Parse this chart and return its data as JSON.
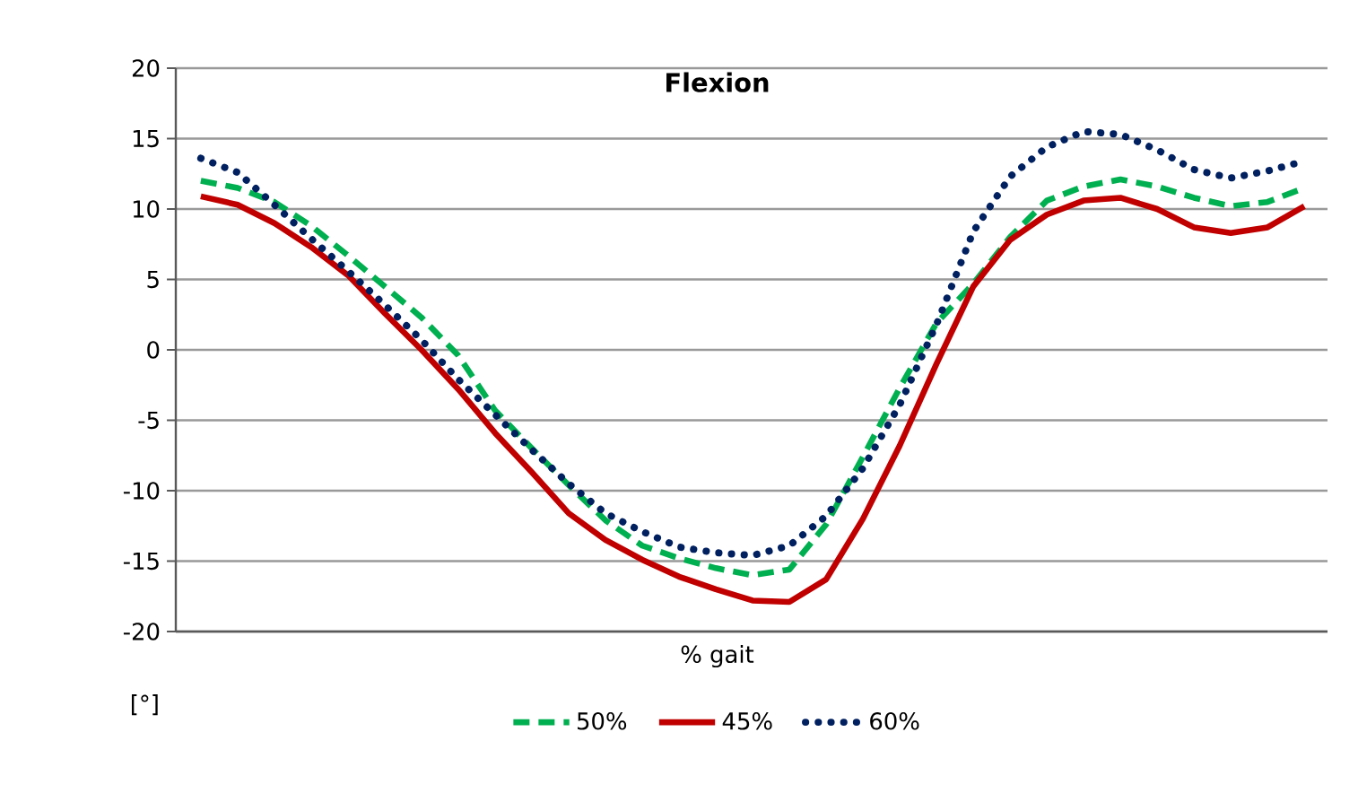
{
  "chart_data": {
    "type": "line",
    "title": "Flexion",
    "xlabel": "% gait",
    "ylabel": "[°]",
    "categories": [
      null,
      null,
      null,
      null,
      null,
      null,
      null,
      null,
      null,
      null,
      null,
      null,
      null,
      null,
      null,
      null,
      null,
      null,
      null,
      null,
      null,
      null,
      null,
      null,
      null,
      null,
      null,
      null,
      null,
      null,
      null
    ],
    "ylim": [
      -20,
      20
    ],
    "yticks": [
      -20,
      -15,
      -10,
      -5,
      0,
      5,
      10,
      15,
      20
    ],
    "grid": "y",
    "legend": "bottom",
    "tick_labels": "y",
    "marker": "none",
    "series": [
      {
        "name": "50%",
        "color": "#00b050",
        "line_style": "dashed",
        "values": [
          12.0,
          11.5,
          10.5,
          8.8,
          6.7,
          4.5,
          2.3,
          -0.4,
          -4.3,
          -7.0,
          -9.6,
          -12.1,
          -13.9,
          -14.8,
          -15.5,
          -16.0,
          -15.6,
          -12.4,
          -7.6,
          -2.7,
          1.9,
          4.7,
          8.0,
          10.6,
          11.6,
          12.1,
          11.6,
          10.8,
          10.2,
          10.5,
          11.5
        ]
      },
      {
        "name": "45%",
        "color": "#c00000",
        "line_style": "solid",
        "values": [
          10.9,
          10.3,
          9.0,
          7.3,
          5.3,
          2.6,
          0.0,
          -2.8,
          -5.9,
          -8.7,
          -11.6,
          -13.5,
          -14.9,
          -16.1,
          -17.0,
          -17.8,
          -17.9,
          -16.3,
          -12.0,
          -6.8,
          -1.0,
          4.5,
          7.8,
          9.6,
          10.6,
          10.8,
          10.0,
          8.7,
          8.3,
          8.7,
          10.2
        ]
      },
      {
        "name": "60%",
        "color": "#002060",
        "line_style": "dotted",
        "values": [
          13.6,
          12.6,
          10.3,
          7.9,
          5.6,
          3.2,
          0.7,
          -2.1,
          -4.6,
          -7.1,
          -9.5,
          -11.6,
          -12.9,
          -14.0,
          -14.4,
          -14.6,
          -13.9,
          -11.8,
          -8.4,
          -3.9,
          1.8,
          8.4,
          12.3,
          14.4,
          15.5,
          15.3,
          14.2,
          12.8,
          12.2,
          12.7,
          13.4
        ]
      }
    ]
  }
}
